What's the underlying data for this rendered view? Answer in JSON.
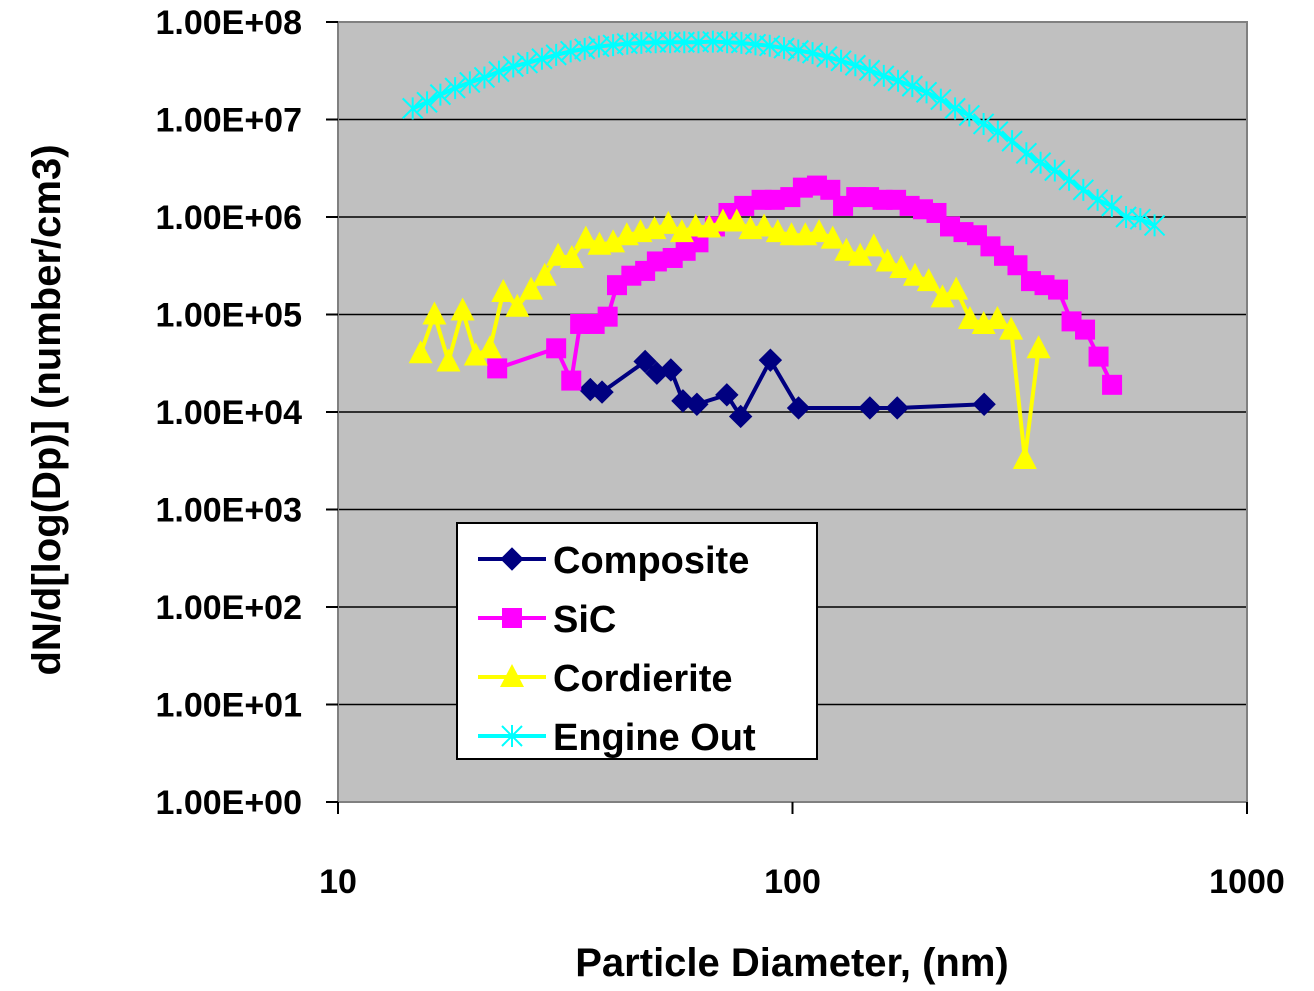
{
  "chart_data": {
    "type": "scatter",
    "title": "",
    "xlabel": "Particle Diameter, (nm)",
    "ylabel": "dN/d[log(Dp)] (number/cm3)",
    "xscale": "log",
    "yscale": "log",
    "xlim": [
      10,
      1000
    ],
    "ylim": [
      1,
      100000000
    ],
    "x_ticks": [
      {
        "value": 10,
        "label": "10"
      },
      {
        "value": 100,
        "label": "100"
      },
      {
        "value": 1000,
        "label": "1000"
      }
    ],
    "y_ticks": [
      {
        "value": 1,
        "label": "1.00E+00"
      },
      {
        "value": 10,
        "label": "1.00E+01"
      },
      {
        "value": 100,
        "label": "1.00E+02"
      },
      {
        "value": 1000,
        "label": "1.00E+03"
      },
      {
        "value": 10000,
        "label": "1.00E+04"
      },
      {
        "value": 100000,
        "label": "1.00E+05"
      },
      {
        "value": 1000000,
        "label": "1.00E+06"
      },
      {
        "value": 10000000,
        "label": "1.00E+07"
      },
      {
        "value": 100000000,
        "label": "1.00E+08"
      }
    ],
    "grid": "horizontal major",
    "plot_background": "#c0c0c0",
    "legend_position": "lower-left inside plot",
    "series": [
      {
        "name": "Composite",
        "color": "#000080",
        "marker": "diamond",
        "x": [
          35.9,
          38.1,
          47.4,
          50.3,
          54.0,
          57.4,
          61.6,
          71.7,
          76.9,
          89.4,
          103.1,
          148.0,
          170.0,
          264.0
        ],
        "y": [
          17000,
          16000,
          33000,
          25000,
          27000,
          13000,
          12000,
          15000,
          9000,
          34000,
          11000,
          11000,
          11000,
          12000
        ]
      },
      {
        "name": "SiC",
        "color": "#ff00ff",
        "marker": "square",
        "x": [
          22.4,
          30.2,
          32.6,
          34.1,
          36.7,
          39.2,
          41.1,
          44.2,
          47.4,
          50.3,
          54.5,
          58.2,
          62.1,
          67.5,
          72.3,
          78.3,
          85.5,
          91.4,
          98.9,
          105.4,
          113.2,
          121.1,
          129.2,
          138.1,
          147.4,
          157.8,
          169.0,
          181.0,
          193.7,
          207.4,
          222.1,
          237.8,
          254.6,
          272.6,
          292.0,
          312.6,
          334.8,
          358.5,
          383.9,
          411.1,
          440.2,
          471.4,
          504.8
        ],
        "y": [
          28000,
          45000,
          21000,
          80000,
          80000,
          95000,
          200000,
          250000,
          280000,
          350000,
          380000,
          450000,
          550000,
          800000,
          1100000,
          1300000,
          1500000,
          1500000,
          1600000,
          2000000,
          2100000,
          1900000,
          1300000,
          1600000,
          1600000,
          1500000,
          1500000,
          1300000,
          1200000,
          1100000,
          800000,
          700000,
          650000,
          500000,
          400000,
          320000,
          220000,
          200000,
          180000,
          85000,
          70000,
          37000,
          19000
        ]
      },
      {
        "name": "Cordierite",
        "color": "#ffff00",
        "marker": "triangle",
        "x": [
          15.2,
          16.3,
          17.5,
          18.8,
          20.1,
          21.6,
          23.1,
          24.8,
          26.6,
          28.5,
          30.5,
          32.7,
          35.1,
          37.6,
          40.3,
          43.2,
          46.3,
          49.7,
          53.3,
          57.1,
          61.2,
          65.6,
          70.3,
          75.4,
          80.8,
          86.6,
          92.8,
          99.5,
          106.7,
          114.4,
          122.6,
          131.4,
          140.9,
          151.0,
          161.9,
          173.5,
          186.0,
          199.4,
          213.8,
          229.2,
          245.7,
          263.4,
          282.4,
          302.7,
          324.5,
          347.9
        ],
        "y": [
          40000,
          100000,
          33000,
          110000,
          38000,
          45000,
          170000,
          120000,
          180000,
          250000,
          400000,
          380000,
          600000,
          520000,
          550000,
          650000,
          700000,
          750000,
          850000,
          700000,
          800000,
          780000,
          900000,
          900000,
          750000,
          800000,
          700000,
          650000,
          650000,
          700000,
          600000,
          450000,
          400000,
          500000,
          350000,
          300000,
          250000,
          220000,
          150000,
          180000,
          90000,
          80000,
          90000,
          70000,
          3300,
          45000
        ]
      },
      {
        "name": "Engine Out",
        "color": "#00ffff",
        "marker": "x",
        "x": [
          14.6,
          15.7,
          16.8,
          18.1,
          19.5,
          21.0,
          22.6,
          24.3,
          26.1,
          28.1,
          30.2,
          32.5,
          34.9,
          37.5,
          40.3,
          43.3,
          46.5,
          50.0,
          53.8,
          57.8,
          62.1,
          66.8,
          71.8,
          77.2,
          82.9,
          89.1,
          95.8,
          103.0,
          110.7,
          119.0,
          127.9,
          137.5,
          147.8,
          158.8,
          170.7,
          183.5,
          197.2,
          212.0,
          227.9,
          244.9,
          263.3,
          283.0,
          304.2,
          327.0,
          351.4,
          377.7,
          406.0,
          436.4,
          469.1,
          504.2,
          541.9,
          582.5,
          626.1
        ],
        "y": [
          13000000,
          15000000,
          18000000,
          21000000,
          24000000,
          27000000,
          31000000,
          35000000,
          38000000,
          42000000,
          46000000,
          50000000,
          53000000,
          56000000,
          58000000,
          60000000,
          61000000,
          62000000,
          62000000,
          62000000,
          62000000,
          63000000,
          62000000,
          61000000,
          59000000,
          57000000,
          54000000,
          51000000,
          48000000,
          44000000,
          40000000,
          36000000,
          32000000,
          28000000,
          25000000,
          22000000,
          19000000,
          16000000,
          13000000,
          11000000,
          9000000,
          7500000,
          6000000,
          4500000,
          3600000,
          3000000,
          2400000,
          1900000,
          1500000,
          1300000,
          1000000,
          950000,
          820000
        ]
      }
    ]
  }
}
